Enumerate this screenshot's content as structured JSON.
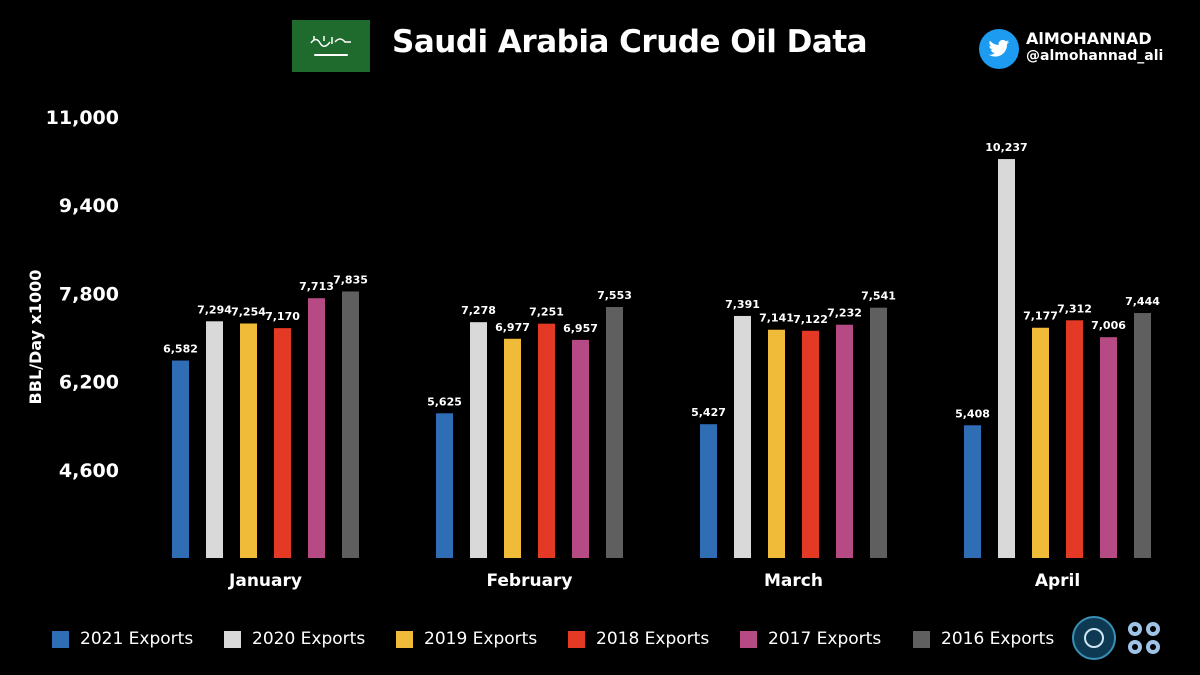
{
  "header": {
    "title": "Saudi Arabia Crude Oil Data",
    "handle_name": "AlMOHANNAD",
    "handle_at": "@almohannad_ali"
  },
  "icons": {
    "flag": "saudi-flag-icon",
    "twitter": "twitter-bird-icon",
    "seal": "ministry-seal-logo",
    "opec": "opec-logo"
  },
  "chart_data": {
    "type": "bar",
    "title": "",
    "xlabel": "",
    "ylabel": "BBL/Day x1000",
    "ylim": [
      3000,
      11000
    ],
    "yticks": [
      "11,000",
      "9,400",
      "7,800",
      "6,200",
      "4,600"
    ],
    "ytick_values": [
      11000,
      9400,
      7800,
      6200,
      4600
    ],
    "categories": [
      "January",
      "February",
      "March",
      "April"
    ],
    "series": [
      {
        "name": "2021 Exports",
        "color": "#2f6db5",
        "values": [
          6582,
          5625,
          5427,
          5408
        ],
        "labels": [
          "6,582",
          "5,625",
          "5,427",
          "5,408"
        ]
      },
      {
        "name": "2020 Exports",
        "color": "#d9d9d9",
        "values": [
          7294,
          7278,
          7391,
          10237
        ],
        "labels": [
          "7,294",
          "7,278",
          "7,391",
          "10,237"
        ]
      },
      {
        "name": "2019 Exports",
        "color": "#f1bb3a",
        "values": [
          7254,
          6977,
          7141,
          7177
        ],
        "labels": [
          "7,254",
          "6,977",
          "7,141",
          "7,177"
        ]
      },
      {
        "name": "2018 Exports",
        "color": "#e43a25",
        "values": [
          7170,
          7251,
          7122,
          7312
        ],
        "labels": [
          "7,170",
          "7,251",
          "7,122",
          "7,312"
        ]
      },
      {
        "name": "2017 Exports",
        "color": "#b54a85",
        "values": [
          7713,
          6957,
          7232,
          7006
        ],
        "labels": [
          "7,713",
          "6,957",
          "7,232",
          "7,006"
        ]
      },
      {
        "name": "2016 Exports",
        "color": "#5f5f5f",
        "values": [
          7835,
          7553,
          7541,
          7444
        ],
        "labels": [
          "7,835",
          "7,553",
          "7,541",
          "7,444"
        ]
      }
    ],
    "grid": false,
    "legend": "bottom"
  }
}
